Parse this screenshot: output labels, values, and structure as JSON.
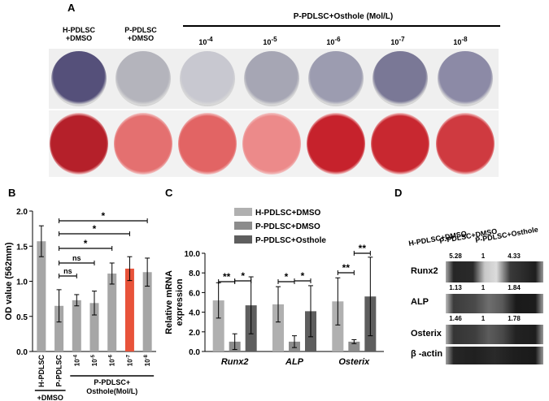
{
  "panel_a": {
    "letter": "A",
    "col1": [
      "H-PDLSC",
      "+DMSO"
    ],
    "col2": [
      "P-PDLSC",
      "+DMSO"
    ],
    "group_title": "P-PDLSC+Osthole (Mol/L)",
    "conc_base": "10",
    "conc_exps": [
      "-4",
      "-5",
      "-6",
      "-7",
      "-8"
    ],
    "alp_well_colors": [
      "#55507a",
      "#b4b4bc",
      "#c8c8d0",
      "#a6a6b4",
      "#9c9cb0",
      "#7a7896",
      "#8c8aa6"
    ],
    "ars_well_colors": [
      "#b5202a",
      "#e47070",
      "#e26464",
      "#ec8a8a",
      "#c6222c",
      "#c82830",
      "#cf3a40"
    ]
  },
  "panel_b": {
    "letter": "B",
    "bar_gray": "#a6a6a6",
    "bar_highlight": "#e8533a",
    "sig": [
      "*",
      "*",
      "*",
      "ns",
      "ns"
    ],
    "xlabels_first": [
      "H-PDLSC",
      "P-PDLSC"
    ],
    "xlabel_dmso": "+DMSO",
    "xlabel_group": [
      "P-PDLSC+",
      "Osthole(Mol/L)"
    ],
    "conc_base": "10",
    "conc_exps": [
      "-4",
      "-5",
      "-6",
      "-7",
      "-8"
    ]
  },
  "panel_c": {
    "letter": "C",
    "legend": [
      "H-PDLSC+DMSO",
      "P-PDLSC+DMSO",
      "P-PDLSC+Osthole"
    ],
    "colors": [
      "#b0b0b0",
      "#8c8c8c",
      "#5e5e5e"
    ],
    "sig_runx2": [
      "**",
      "*"
    ],
    "sig_alp": [
      "*",
      "*"
    ],
    "sig_osterix": [
      "**",
      "**"
    ]
  },
  "panel_d": {
    "letter": "D",
    "headers": [
      "H-PDLSC+DMSO",
      "P-PDLSC+DMSO",
      "P-PDLSC+Osthole"
    ],
    "runx2_label": "Runx2",
    "alp_label": "ALP",
    "osterix_label": "Osterix",
    "actin_label": "β -actin",
    "runx2_vals": [
      "5.28",
      "1",
      "4.33"
    ],
    "alp_vals": [
      "1.13",
      "1",
      "1.84"
    ],
    "osterix_vals": [
      "1.46",
      "1",
      "1.78"
    ]
  },
  "chart_data": [
    {
      "type": "bar",
      "panel": "B",
      "categories": [
        "H-PDLSC +DMSO",
        "P-PDLSC +DMSO",
        "10-4",
        "10-5",
        "10-6",
        "10-7",
        "10-8"
      ],
      "values": [
        1.57,
        0.65,
        0.73,
        0.69,
        1.11,
        1.18,
        1.13
      ],
      "errors": [
        0.22,
        0.23,
        0.08,
        0.17,
        0.15,
        0.17,
        0.2
      ],
      "ylabel": "OD value (562mm)",
      "ylim": [
        0,
        2.0
      ],
      "yticks": [
        "0.0",
        "0.5",
        "1.0",
        "1.5",
        "2.0"
      ],
      "comparisons": [
        {
          "from": "P-PDLSC +DMSO",
          "to": "10-8",
          "label": "*"
        },
        {
          "from": "P-PDLSC +DMSO",
          "to": "10-7",
          "label": "*"
        },
        {
          "from": "P-PDLSC +DMSO",
          "to": "10-6",
          "label": "*"
        },
        {
          "from": "P-PDLSC +DMSO",
          "to": "10-5",
          "label": "ns"
        },
        {
          "from": "P-PDLSC +DMSO",
          "to": "10-4",
          "label": "ns"
        }
      ]
    },
    {
      "type": "bar",
      "panel": "C",
      "categories": [
        "Runx2",
        "ALP",
        "Osterix"
      ],
      "series": [
        {
          "name": "H-PDLSC+DMSO",
          "values": [
            5.2,
            4.8,
            5.1
          ],
          "errors": [
            1.8,
            1.8,
            2.4
          ]
        },
        {
          "name": "P-PDLSC+DMSO",
          "values": [
            1.0,
            1.0,
            1.0
          ],
          "errors": [
            0.8,
            0.6,
            0.2
          ]
        },
        {
          "name": "P-PDLSC+Osthole",
          "values": [
            4.7,
            4.1,
            5.6
          ],
          "errors": [
            2.9,
            2.6,
            4.0
          ]
        }
      ],
      "ylabel": "Relative mRNA expression",
      "ylim": [
        0,
        10.0
      ],
      "yticks": [
        "0.0",
        "2.0",
        "4.0",
        "6.0",
        "8.0",
        "10.0"
      ]
    }
  ]
}
